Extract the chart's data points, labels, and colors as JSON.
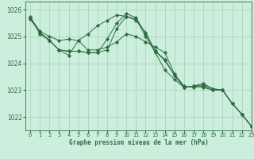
{
  "title": "Graphe pression niveau de la mer (hPa)",
  "bg_color": "#cceedd",
  "grid_color": "#aaccbb",
  "line_color": "#2d6e3e",
  "marker_color": "#2d6e3e",
  "xlim": [
    -0.5,
    23
  ],
  "ylim": [
    1021.5,
    1026.3
  ],
  "yticks": [
    1022,
    1023,
    1024,
    1025,
    1026
  ],
  "xticks": [
    0,
    1,
    2,
    3,
    4,
    5,
    6,
    7,
    8,
    9,
    10,
    11,
    12,
    13,
    14,
    15,
    16,
    17,
    18,
    19,
    20,
    21,
    22,
    23
  ],
  "series": [
    [
      1025.7,
      1025.2,
      1025.0,
      1024.85,
      1024.9,
      1024.85,
      1024.5,
      1024.5,
      1024.6,
      1024.8,
      1025.1,
      1025.0,
      1024.8,
      1024.6,
      1024.4,
      1023.6,
      1023.15,
      1023.1,
      1023.15,
      1023.0,
      1023.0,
      1022.5,
      1022.1,
      1021.65
    ],
    [
      1025.7,
      1025.15,
      1024.85,
      1024.5,
      1024.45,
      1024.45,
      1024.4,
      1024.4,
      1024.5,
      1025.3,
      1025.75,
      1025.6,
      1025.15,
      1024.45,
      1024.1,
      1023.55,
      1023.1,
      1023.15,
      1023.2,
      1023.05,
      1023.0,
      1022.5,
      1022.1,
      1021.65
    ],
    [
      1025.75,
      1025.1,
      1024.85,
      1024.5,
      1024.45,
      1024.45,
      1024.4,
      1024.4,
      1024.9,
      1025.5,
      1025.85,
      1025.7,
      1025.1,
      1024.45,
      1024.15,
      1023.55,
      1023.1,
      1023.15,
      1023.25,
      1023.05,
      1023.0,
      1022.5,
      1022.1,
      1021.65
    ],
    [
      1025.65,
      1025.15,
      1024.85,
      1024.5,
      1024.3,
      1024.85,
      1025.1,
      1025.4,
      1025.6,
      1025.8,
      1025.75,
      1025.65,
      1025.0,
      1024.4,
      1023.75,
      1023.4,
      1023.1,
      1023.15,
      1023.1,
      1023.0,
      1023.0,
      1022.5,
      1022.1,
      1021.65
    ]
  ]
}
